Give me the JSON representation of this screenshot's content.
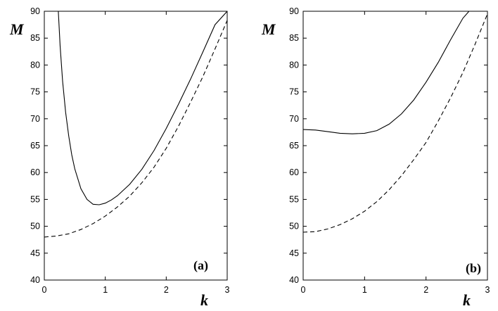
{
  "chart_data": [
    {
      "type": "line",
      "panel_label": "(a)",
      "xlabel": "k",
      "ylabel": "M",
      "xlim": [
        0,
        3
      ],
      "ylim": [
        40,
        90
      ],
      "xticks": [
        "0",
        "1",
        "2",
        "3"
      ],
      "yticks": [
        "40",
        "45",
        "50",
        "55",
        "60",
        "65",
        "70",
        "75",
        "80",
        "85",
        "90"
      ],
      "grid": false,
      "series": [
        {
          "style": "solid",
          "x": [
            0.23,
            0.26,
            0.3,
            0.35,
            0.4,
            0.45,
            0.5,
            0.6,
            0.7,
            0.8,
            0.9,
            1.0,
            1.1,
            1.2,
            1.4,
            1.6,
            1.8,
            2.0,
            2.2,
            2.4,
            2.6,
            2.8,
            3.0
          ],
          "y": [
            90,
            83.5,
            77.0,
            71.2,
            66.8,
            63.3,
            60.7,
            57.0,
            55.0,
            54.1,
            54.0,
            54.3,
            54.9,
            55.7,
            57.8,
            60.6,
            64.1,
            68.2,
            72.7,
            77.4,
            82.4,
            87.5,
            90
          ]
        },
        {
          "style": "dashed",
          "x": [
            0,
            0.2,
            0.4,
            0.6,
            0.8,
            1.0,
            1.2,
            1.4,
            1.6,
            1.8,
            2.0,
            2.2,
            2.4,
            2.6,
            2.8,
            3.0
          ],
          "y": [
            48.0,
            48.2,
            48.6,
            49.4,
            50.5,
            51.9,
            53.6,
            55.6,
            58.1,
            61.0,
            64.5,
            68.6,
            73.1,
            77.8,
            83.0,
            88.3
          ]
        }
      ]
    },
    {
      "type": "line",
      "panel_label": "(b)",
      "xlabel": "k",
      "ylabel": "M",
      "xlim": [
        0,
        3
      ],
      "ylim": [
        40,
        90
      ],
      "xticks": [
        "0",
        "1",
        "2",
        "3"
      ],
      "yticks": [
        "40",
        "45",
        "50",
        "55",
        "60",
        "65",
        "70",
        "75",
        "80",
        "85",
        "90"
      ],
      "grid": false,
      "series": [
        {
          "style": "solid",
          "x": [
            0,
            0.2,
            0.4,
            0.6,
            0.8,
            1.0,
            1.2,
            1.4,
            1.6,
            1.8,
            2.0,
            2.2,
            2.4,
            2.6,
            2.7
          ],
          "y": [
            68.0,
            67.9,
            67.6,
            67.3,
            67.2,
            67.3,
            67.8,
            69.0,
            70.9,
            73.5,
            76.8,
            80.5,
            84.7,
            88.7,
            90
          ]
        },
        {
          "style": "dashed",
          "x": [
            0,
            0.2,
            0.4,
            0.6,
            0.8,
            1.0,
            1.2,
            1.4,
            1.6,
            1.8,
            2.0,
            2.2,
            2.4,
            2.6,
            2.8,
            3.0
          ],
          "y": [
            48.9,
            49.0,
            49.5,
            50.3,
            51.4,
            52.8,
            54.6,
            56.8,
            59.4,
            62.4,
            65.6,
            69.6,
            73.9,
            78.6,
            83.9,
            89.5
          ]
        }
      ]
    }
  ]
}
